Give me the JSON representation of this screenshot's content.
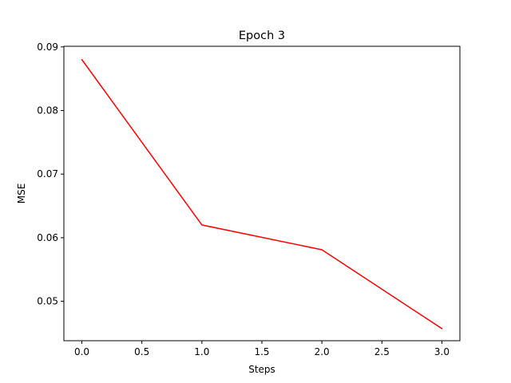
{
  "chart_data": {
    "type": "line",
    "title": "Epoch 3",
    "xlabel": "Steps",
    "ylabel": "MSE",
    "xlim": [
      -0.15,
      3.15
    ],
    "ylim": [
      0.0438,
      0.0901
    ],
    "xticks": [
      0.0,
      0.5,
      1.0,
      1.5,
      2.0,
      2.5,
      3.0
    ],
    "xtick_labels": [
      "0.0",
      "0.5",
      "1.0",
      "1.5",
      "2.0",
      "2.5",
      "3.0"
    ],
    "yticks": [
      0.05,
      0.06,
      0.07,
      0.08,
      0.09
    ],
    "ytick_labels": [
      "0.05",
      "0.06",
      "0.07",
      "0.08",
      "0.09"
    ],
    "grid": false,
    "series": [
      {
        "color": "#ff0000",
        "x": [
          0,
          1,
          2,
          3
        ],
        "y": [
          0.088,
          0.062,
          0.0581,
          0.0457
        ]
      }
    ]
  }
}
